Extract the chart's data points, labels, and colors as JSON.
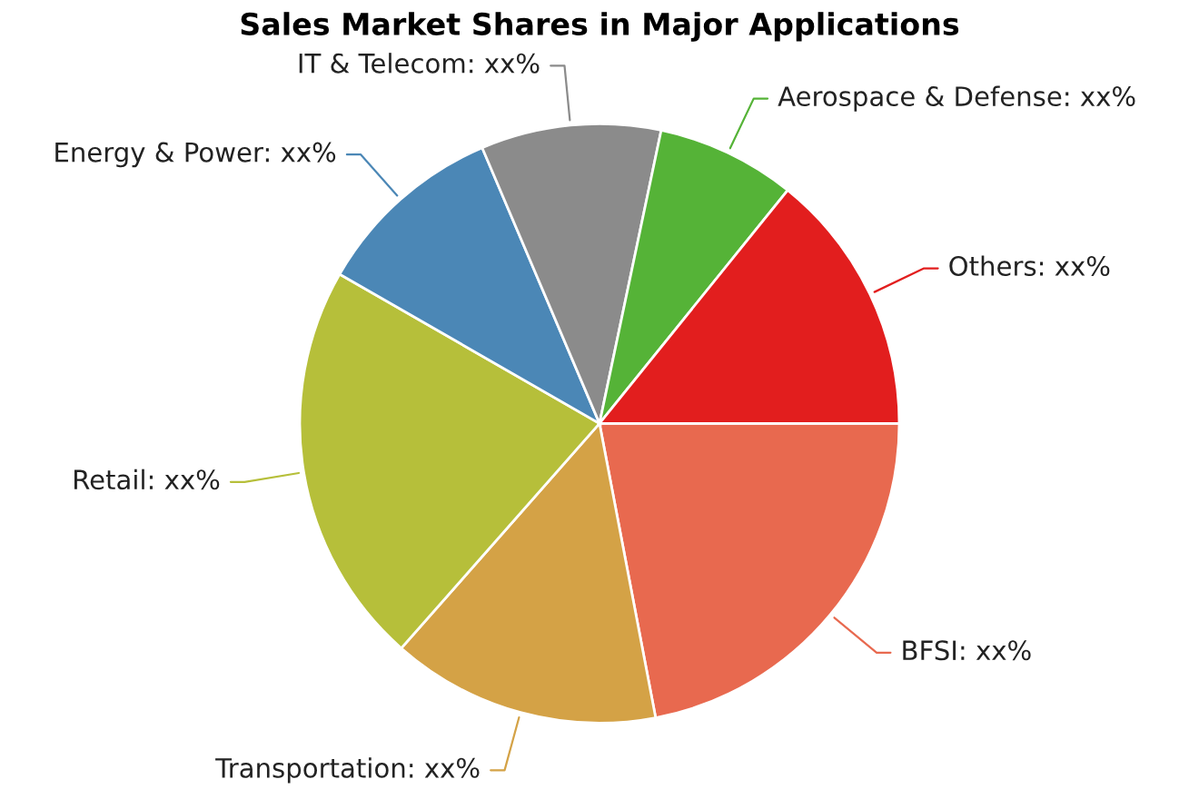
{
  "chart_data": {
    "type": "pie",
    "title": "Sales Market Shares in Major Applications",
    "categories": [
      "BFSI",
      "Transportation",
      "Retail",
      "Energy & Power",
      "IT & Telecom",
      "Aerospace & Defense",
      "Others"
    ],
    "values": [
      22,
      14.5,
      21.8,
      10.3,
      9.7,
      7.5,
      14.2
    ],
    "value_labels": [
      "xx%",
      "xx%",
      "xx%",
      "xx%",
      "xx%",
      "xx%",
      "xx%"
    ],
    "colors": [
      "#e8694f",
      "#d4a246",
      "#b6bf3a",
      "#4b87b6",
      "#8b8b8b",
      "#55b337",
      "#e21e1e"
    ],
    "legend": false
  }
}
